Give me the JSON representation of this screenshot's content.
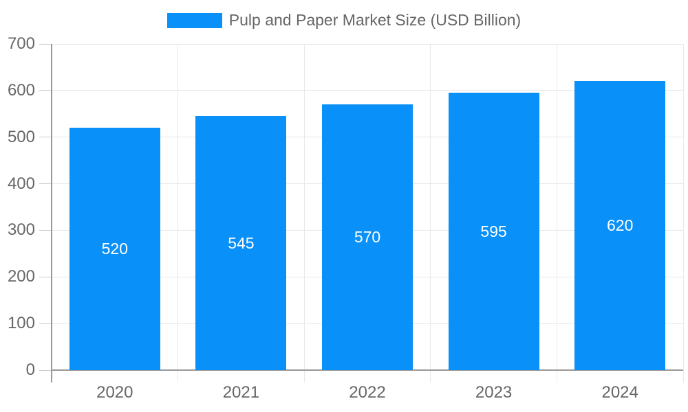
{
  "chart_data": {
    "type": "bar",
    "title": "Pulp and Paper Market Size (USD Billion)",
    "categories": [
      "2020",
      "2021",
      "2022",
      "2023",
      "2024"
    ],
    "series": [
      {
        "name": "Pulp and Paper Market Size (USD Billion)",
        "values": [
          520,
          545,
          570,
          595,
          620
        ]
      }
    ],
    "value_labels": [
      "520",
      "545",
      "570",
      "595",
      "620"
    ],
    "xlabel": "",
    "ylabel": "",
    "ylim": [
      0,
      700
    ],
    "ytick_step": 100,
    "ytick_labels": [
      "0",
      "100",
      "200",
      "300",
      "400",
      "500",
      "600",
      "700"
    ],
    "grid": true,
    "legend_position": "top-center",
    "colors": {
      "bar": "#0A90F9",
      "grid": "#e8e8e8",
      "axis": "#999999",
      "tick": "#cccccc",
      "tick_label": "#666666",
      "value_label": "#ffffff",
      "background": "#ffffff"
    }
  }
}
